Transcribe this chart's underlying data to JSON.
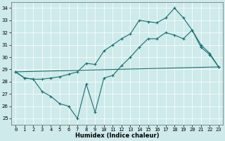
{
  "xlabel": "Humidex (Indice chaleur)",
  "bg_color": "#ceeaea",
  "grid_color": "#ffffff",
  "line_color": "#1a6e6e",
  "line1_x": [
    0,
    1,
    2,
    3,
    4,
    5,
    6,
    7,
    8,
    9,
    10,
    11,
    12,
    13,
    14,
    15,
    16,
    17,
    18,
    19,
    20,
    21,
    22,
    23
  ],
  "line1_y": [
    28.8,
    28.3,
    28.2,
    28.2,
    28.3,
    28.4,
    28.6,
    28.8,
    29.5,
    29.4,
    30.5,
    31.0,
    31.5,
    31.9,
    33.0,
    32.9,
    32.8,
    33.2,
    34.0,
    33.2,
    32.2,
    30.8,
    30.2,
    29.2
  ],
  "line2_x": [
    0,
    1,
    2,
    3,
    4,
    5,
    6,
    7,
    8,
    9,
    10,
    11,
    12,
    13,
    14,
    15,
    16,
    17,
    18,
    19,
    20,
    21,
    22,
    23
  ],
  "line2_y": [
    28.8,
    28.3,
    28.2,
    27.2,
    26.8,
    26.2,
    26.0,
    25.0,
    27.8,
    25.5,
    28.3,
    28.5,
    29.3,
    30.0,
    30.8,
    31.5,
    31.5,
    32.0,
    31.8,
    31.5,
    32.2,
    31.0,
    30.3,
    29.2
  ],
  "line3_x": [
    0,
    23
  ],
  "line3_y": [
    28.8,
    29.2
  ],
  "ylim": [
    24.5,
    34.5
  ],
  "xlim": [
    -0.5,
    23.5
  ],
  "yticks": [
    25,
    26,
    27,
    28,
    29,
    30,
    31,
    32,
    33,
    34
  ],
  "xticks": [
    0,
    1,
    2,
    3,
    4,
    5,
    6,
    7,
    8,
    9,
    10,
    11,
    12,
    13,
    14,
    15,
    16,
    17,
    18,
    19,
    20,
    21,
    22,
    23
  ],
  "marker": "+",
  "markersize": 3.5,
  "markeredgewidth": 0.8,
  "linewidth": 0.8,
  "tick_fontsize": 5.0,
  "xlabel_fontsize": 6.0
}
